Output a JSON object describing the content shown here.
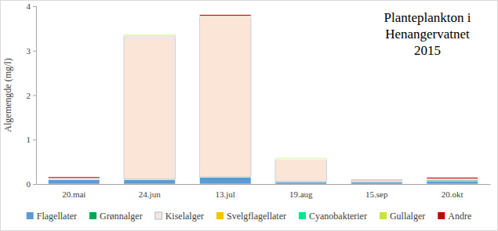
{
  "chart_data": {
    "type": "bar",
    "title": "Planteplankton i Henangervatnet 2015",
    "y_label": "Algemengde (mg/l)",
    "categories": [
      "20.mai",
      "24.jun",
      "13.jul",
      "19.aug",
      "15.sep",
      "20.okt"
    ],
    "series": [
      {
        "name": "Flagellater",
        "color": "#5b9bd5",
        "values": [
          0.1,
          0.1,
          0.15,
          0.05,
          0.05,
          0.07
        ]
      },
      {
        "name": "Grønnalger",
        "color": "#00a651",
        "values": [
          0.01,
          0.01,
          0.01,
          0.01,
          0.01,
          0.02
        ]
      },
      {
        "name": "Kiselalger",
        "color": "#fbe5d6",
        "values": [
          0.01,
          3.22,
          3.6,
          0.49,
          0.01,
          0.01
        ]
      },
      {
        "name": "Svelgflagellater",
        "color": "#ffc000",
        "values": [
          0.005,
          0.01,
          0.01,
          0.01,
          0.005,
          0.01
        ]
      },
      {
        "name": "Cyanobakterier",
        "color": "#00e68c",
        "values": [
          0,
          0.01,
          0,
          0.01,
          0,
          0
        ]
      },
      {
        "name": "Gullalger",
        "color": "#c8e632",
        "values": [
          0.005,
          0.02,
          0.01,
          0.02,
          0.005,
          0.01
        ]
      },
      {
        "name": "Andre",
        "color": "#c00000",
        "values": [
          0.03,
          0.01,
          0.03,
          0,
          0.02,
          0.03
        ]
      }
    ],
    "ylim": [
      0,
      4
    ],
    "yticks": [
      0,
      1,
      2,
      3,
      4
    ],
    "stacked": true,
    "grid": false,
    "legend": "bottom"
  }
}
